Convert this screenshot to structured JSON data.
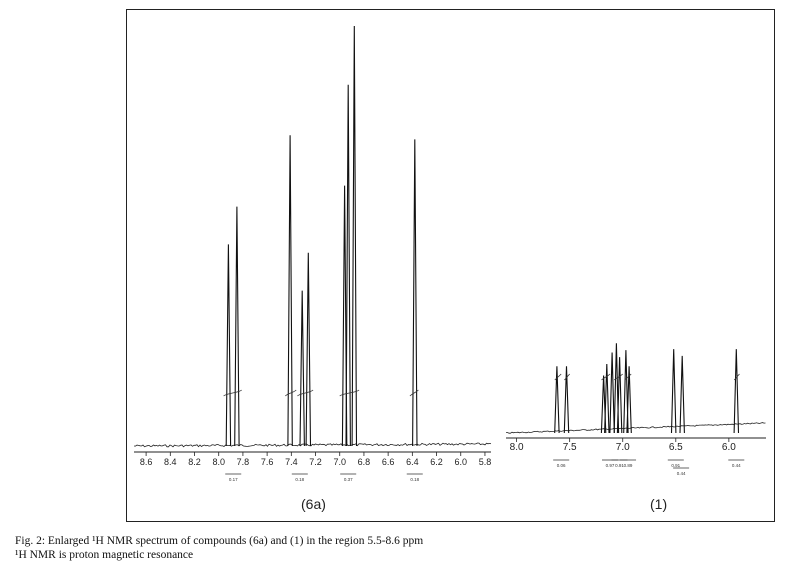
{
  "panels": {
    "left": {
      "label": "(6a)"
    },
    "right": {
      "label": "(1)"
    }
  },
  "caption": {
    "line1": "Fig. 2: Enlarged ¹H NMR spectrum of compounds (6a) and (1) in the region 5.5-8.6 ppm",
    "line2": "¹H NMR is proton magnetic resonance"
  },
  "chart_data": [
    {
      "type": "line",
      "name": "(6a)",
      "xlabel": "",
      "ylabel": "",
      "xlim": [
        8.7,
        5.75
      ],
      "x_direction": "reversed",
      "grid": false,
      "tick_labels": [
        "8.6",
        "8.4",
        "8.2",
        "8.0",
        "7.8",
        "7.6",
        "7.4",
        "7.2",
        "7.0",
        "6.8",
        "6.6",
        "6.4",
        "6.2",
        "6.0",
        "5.8"
      ],
      "tick_values": [
        8.6,
        8.4,
        8.2,
        8.0,
        7.8,
        7.6,
        7.4,
        7.2,
        7.0,
        6.8,
        6.6,
        6.4,
        6.2,
        6.0,
        5.8
      ],
      "peaks": [
        {
          "ppm": 7.92,
          "height": 0.48
        },
        {
          "ppm": 7.85,
          "height": 0.57
        },
        {
          "ppm": 7.41,
          "height": 0.74
        },
        {
          "ppm": 7.31,
          "height": 0.37
        },
        {
          "ppm": 7.26,
          "height": 0.46
        },
        {
          "ppm": 6.96,
          "height": 0.62
        },
        {
          "ppm": 6.93,
          "height": 0.86
        },
        {
          "ppm": 6.88,
          "height": 1.0
        },
        {
          "ppm": 6.38,
          "height": 0.73
        }
      ],
      "integral_labels": [
        "0.17",
        "0.18",
        "0.37",
        "0.18"
      ]
    },
    {
      "type": "line",
      "name": "(1)",
      "xlabel": "",
      "ylabel": "",
      "xlim": [
        8.1,
        5.65
      ],
      "x_direction": "reversed",
      "grid": false,
      "tick_labels": [
        "8.0",
        "7.5",
        "7.0",
        "6.5",
        "6.0"
      ],
      "tick_values": [
        8.0,
        7.5,
        7.0,
        6.5,
        6.0
      ],
      "peaks": [
        {
          "ppm": 7.62,
          "height": 0.58
        },
        {
          "ppm": 7.53,
          "height": 0.58
        },
        {
          "ppm": 7.18,
          "height": 0.5
        },
        {
          "ppm": 7.15,
          "height": 0.6
        },
        {
          "ppm": 7.1,
          "height": 0.7
        },
        {
          "ppm": 7.06,
          "height": 0.78
        },
        {
          "ppm": 7.03,
          "height": 0.66
        },
        {
          "ppm": 6.97,
          "height": 0.72
        },
        {
          "ppm": 6.94,
          "height": 0.58
        },
        {
          "ppm": 6.52,
          "height": 0.73
        },
        {
          "ppm": 6.44,
          "height": 0.67
        },
        {
          "ppm": 5.93,
          "height": 0.73
        }
      ],
      "integral_labels": [
        "0.06",
        "0.97",
        "0.91",
        "0.89",
        "0.91",
        "0.44",
        "0.44"
      ]
    }
  ]
}
